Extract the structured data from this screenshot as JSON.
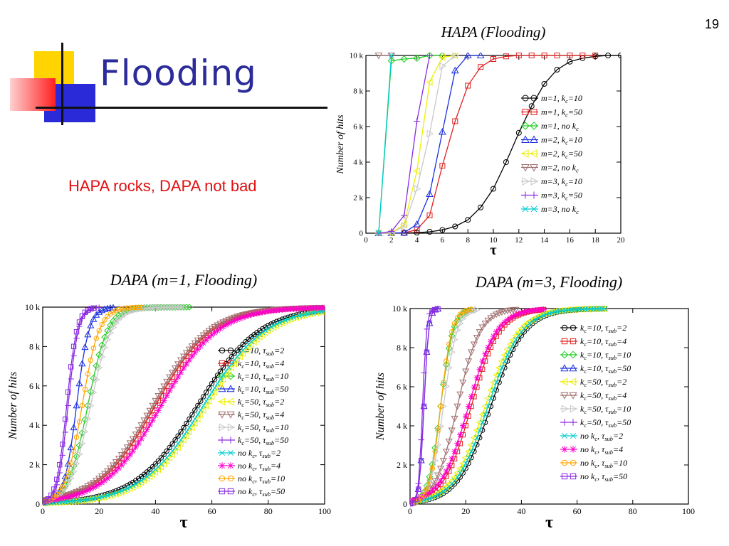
{
  "slide": {
    "title": "Flooding",
    "number": "19",
    "subtitle": "HAPA rocks, DAPA not bad",
    "colors": {
      "title": "#2b2b9a",
      "subtitle": "#e01010"
    }
  },
  "chart_data": [
    {
      "id": "hapa",
      "type": "line",
      "title": "HAPA (Flooding)",
      "xlabel": "τ",
      "ylabel": "Number of hits",
      "xlim": [
        0,
        20
      ],
      "ylim": [
        0,
        10000
      ],
      "xticks": [
        0,
        2,
        4,
        6,
        8,
        10,
        12,
        14,
        16,
        18,
        20
      ],
      "yticks": [
        0,
        2000,
        4000,
        6000,
        8000,
        10000
      ],
      "ytick_labels": [
        "0",
        "2 k",
        "4 k",
        "6 k",
        "8 k",
        "10 k"
      ],
      "grid": false,
      "legend": "right",
      "series": [
        {
          "name": "m=1, k_c=10",
          "color": "#000000",
          "marker": "circle",
          "x": [
            1,
            2,
            3,
            4,
            5,
            6,
            7,
            8,
            9,
            10,
            11,
            12,
            13,
            14,
            15,
            16,
            17,
            18,
            19,
            20
          ],
          "y": [
            0,
            0,
            5,
            30,
            80,
            180,
            380,
            750,
            1450,
            2500,
            4000,
            5650,
            7150,
            8400,
            9200,
            9650,
            9850,
            9950,
            10000,
            10000
          ]
        },
        {
          "name": "m=1, k_c=50",
          "color": "#e02020",
          "marker": "square",
          "x": [
            1,
            2,
            3,
            4,
            5,
            6,
            7,
            8,
            9,
            10,
            11,
            12,
            13,
            14,
            15,
            16,
            17,
            18
          ],
          "y": [
            0,
            0,
            20,
            200,
            1000,
            3800,
            6300,
            8300,
            9350,
            9800,
            9950,
            10000,
            10000,
            10000,
            10000,
            10000,
            10000,
            10000
          ]
        },
        {
          "name": "m=1, no k_c",
          "color": "#22cc22",
          "marker": "diamond",
          "x": [
            1,
            2,
            3,
            4,
            5,
            6
          ],
          "y": [
            0,
            9700,
            9800,
            9850,
            10000,
            10000
          ]
        },
        {
          "name": "m=2, k_c=10",
          "color": "#1a2ee0",
          "marker": "triangle-up",
          "x": [
            1,
            2,
            3,
            4,
            5,
            6,
            7,
            8,
            9
          ],
          "y": [
            0,
            0,
            30,
            500,
            2200,
            5700,
            9150,
            10000,
            10000
          ]
        },
        {
          "name": "m=2, k_c=50",
          "color": "#eeee00",
          "marker": "triangle-left",
          "x": [
            1,
            2,
            3,
            4,
            5,
            6,
            7
          ],
          "y": [
            0,
            0,
            500,
            3500,
            8500,
            9900,
            10000
          ]
        },
        {
          "name": "m=2, no k_c",
          "color": "#a07070",
          "marker": "triangle-down",
          "x": [
            1,
            2
          ],
          "y": [
            10000,
            10000
          ]
        },
        {
          "name": "m=3, k_c=10",
          "color": "#c8c8c8",
          "marker": "triangle-right",
          "x": [
            1,
            2,
            3,
            4,
            5,
            6,
            7
          ],
          "y": [
            0,
            0,
            400,
            2500,
            5600,
            9400,
            10000
          ]
        },
        {
          "name": "m=3, k_c=50",
          "color": "#8a2be2",
          "marker": "plus",
          "x": [
            1,
            2,
            3,
            4,
            5
          ],
          "y": [
            0,
            100,
            1000,
            6300,
            10000
          ]
        },
        {
          "name": "m=3, no k_c",
          "color": "#00cccc",
          "marker": "x",
          "x": [
            1,
            2
          ],
          "y": [
            0,
            10000
          ]
        }
      ]
    },
    {
      "id": "dapa1",
      "type": "line",
      "title": "DAPA (m=1, Flooding)",
      "xlabel": "τ",
      "ylabel": "Number of hits",
      "xlim": [
        0,
        100
      ],
      "ylim": [
        0,
        10000
      ],
      "xticks": [
        0,
        20,
        40,
        60,
        80,
        100
      ],
      "yticks": [
        0,
        2000,
        4000,
        6000,
        8000,
        10000
      ],
      "ytick_labels": [
        "0",
        "2 k",
        "4 k",
        "6 k",
        "8 k",
        "10 k"
      ],
      "grid": false,
      "legend": "right",
      "series": [
        {
          "name": "k_c=10, τ_sub=2",
          "color": "#000000",
          "marker": "circle",
          "midpoint": 55,
          "width": 11,
          "xmax": 100
        },
        {
          "name": "k_c=10, τ_sub=4",
          "color": "#e02020",
          "marker": "square",
          "midpoint": 40,
          "width": 10,
          "xmax": 100
        },
        {
          "name": "k_c=10, τ_sub=10",
          "color": "#22cc22",
          "marker": "diamond",
          "midpoint": 16,
          "width": 3.5,
          "xmax": 52
        },
        {
          "name": "k_c=10, τ_sub=50",
          "color": "#1a2ee0",
          "marker": "triangle-up",
          "midpoint": 12,
          "width": 2.2,
          "xmax": 25
        },
        {
          "name": "k_c=50, τ_sub=2",
          "color": "#eeee00",
          "marker": "triangle-left",
          "midpoint": 58,
          "width": 11,
          "xmax": 100
        },
        {
          "name": "k_c=50, τ_sub=4",
          "color": "#a07070",
          "marker": "triangle-down",
          "midpoint": 39,
          "width": 10,
          "xmax": 100
        },
        {
          "name": "k_c=50, τ_sub=10",
          "color": "#c8c8c8",
          "marker": "triangle-right",
          "midpoint": 17,
          "width": 3.7,
          "xmax": 50
        },
        {
          "name": "k_c=50, τ_sub=50",
          "color": "#8a2be2",
          "marker": "plus",
          "midpoint": 9,
          "width": 1.8,
          "xmax": 20
        },
        {
          "name": "no k_c, τ_sub=2",
          "color": "#00cccc",
          "marker": "x",
          "midpoint": 57,
          "width": 11,
          "xmax": 100
        },
        {
          "name": "no k_c, τ_sub=4",
          "color": "#ff00cc",
          "marker": "star",
          "midpoint": 42,
          "width": 10,
          "xmax": 100
        },
        {
          "name": "no k_c, τ_sub=10",
          "color": "#ffa500",
          "marker": "circle",
          "midpoint": 14,
          "width": 3,
          "xmax": 35
        },
        {
          "name": "no k_c, τ_sub=50",
          "color": "#8a2be2",
          "marker": "square",
          "midpoint": 8.5,
          "width": 1.8,
          "xmax": 18
        }
      ]
    },
    {
      "id": "dapa3",
      "type": "line",
      "title": "DAPA (m=3, Flooding)",
      "xlabel": "τ",
      "ylabel": "Number of hits",
      "xlim": [
        0,
        100
      ],
      "ylim": [
        0,
        10000
      ],
      "xticks": [
        0,
        20,
        40,
        60,
        80,
        100
      ],
      "yticks": [
        0,
        2000,
        4000,
        6000,
        8000,
        10000
      ],
      "ytick_labels": [
        "0",
        "2 k",
        "4 k",
        "6 k",
        "8 k",
        "10 k"
      ],
      "grid": false,
      "legend": "right",
      "series": [
        {
          "name": "k_c=10, τ_sub=2",
          "color": "#000000",
          "marker": "circle",
          "midpoint": 29,
          "width": 6,
          "xmax": 70
        },
        {
          "name": "k_c=10, τ_sub=4",
          "color": "#e02020",
          "marker": "square",
          "midpoint": 22,
          "width": 5,
          "xmax": 48
        },
        {
          "name": "k_c=10, τ_sub=10",
          "color": "#22cc22",
          "marker": "diamond",
          "midpoint": 11,
          "width": 2.2,
          "xmax": 22
        },
        {
          "name": "k_c=10, τ_sub=50",
          "color": "#1a2ee0",
          "marker": "triangle-up",
          "midpoint": 5,
          "width": 0.8,
          "xmax": 10
        },
        {
          "name": "k_c=50, τ_sub=2",
          "color": "#eeee00",
          "marker": "triangle-left",
          "midpoint": 27,
          "width": 6,
          "xmax": 70
        },
        {
          "name": "k_c=50, τ_sub=4",
          "color": "#a07070",
          "marker": "triangle-down",
          "midpoint": 17,
          "width": 4,
          "xmax": 38
        },
        {
          "name": "k_c=50, τ_sub=10",
          "color": "#c8c8c8",
          "marker": "triangle-right",
          "midpoint": 12,
          "width": 2.4,
          "xmax": 24
        },
        {
          "name": "k_c=50, τ_sub=50",
          "color": "#8a2be2",
          "marker": "plus",
          "midpoint": 4.5,
          "width": 0.7,
          "xmax": 10
        },
        {
          "name": "no k_c, τ_sub=2",
          "color": "#00cccc",
          "marker": "x",
          "midpoint": 28,
          "width": 6,
          "xmax": 70
        },
        {
          "name": "no k_c, τ_sub=4",
          "color": "#ff00cc",
          "marker": "star",
          "midpoint": 21,
          "width": 5,
          "xmax": 48
        },
        {
          "name": "no k_c, τ_sub=10",
          "color": "#ffa500",
          "marker": "circle",
          "midpoint": 11,
          "width": 2,
          "xmax": 22
        },
        {
          "name": "no k_c, τ_sub=50",
          "color": "#8a2be2",
          "marker": "square",
          "midpoint": 5,
          "width": 0.8,
          "xmax": 10
        }
      ]
    }
  ]
}
